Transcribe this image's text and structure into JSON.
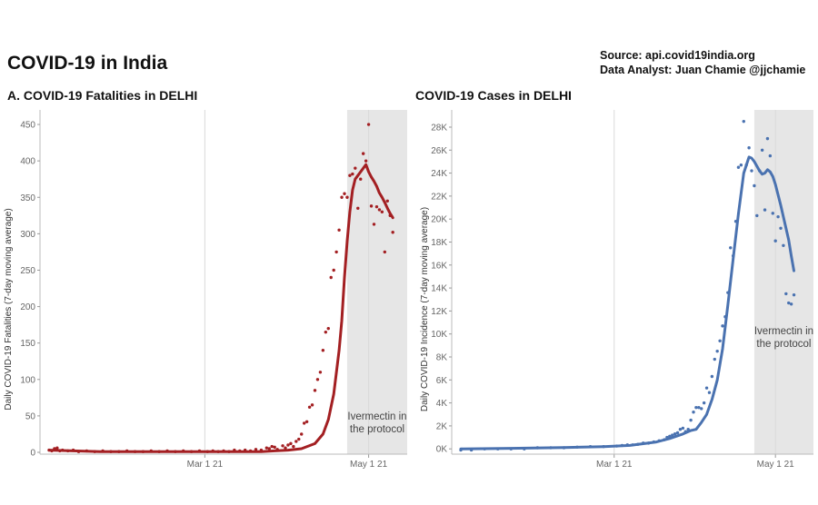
{
  "page": {
    "title": "COVID-19 in India",
    "source_line1": "Source: api.covid19india.org",
    "source_line2": "Data Analyst:  Juan Chamie @jjchamie"
  },
  "colors": {
    "fatalities": "#a31f22",
    "cases": "#4a72b0",
    "shade": "#e6e6e6"
  },
  "chart_data": [
    {
      "type": "line",
      "title": "A. COVID-19 Fatalities in DELHI",
      "ylabel": "Daily COVID-19 Fatalities (7-day moving average)",
      "ylim": [
        0,
        470
      ],
      "yticks": [
        0,
        50,
        100,
        150,
        200,
        250,
        300,
        350,
        400,
        450
      ],
      "ytick_labels": [
        "0",
        "50",
        "100",
        "150",
        "200",
        "250",
        "300",
        "350",
        "400",
        "450"
      ],
      "xticks": [
        {
          "label": "Mar 1 21",
          "day": 59
        },
        {
          "label": "May 1 21",
          "day": 120
        }
      ],
      "x_start_day": 1,
      "x_end_day": 133,
      "shaded_region": {
        "start_day": 112,
        "end_day": 133,
        "label_line1": "Ivermectin in",
        "label_line2": "the protocol"
      },
      "series": [
        {
          "kind": "line",
          "points": [
            [
              1,
              3
            ],
            [
              10,
              2
            ],
            [
              20,
              1
            ],
            [
              30,
              1
            ],
            [
              40,
              1
            ],
            [
              50,
              1
            ],
            [
              60,
              1
            ],
            [
              70,
              1
            ],
            [
              80,
              1
            ],
            [
              85,
              2
            ],
            [
              90,
              3
            ],
            [
              95,
              5
            ],
            [
              100,
              12
            ],
            [
              103,
              25
            ],
            [
              105,
              45
            ],
            [
              107,
              80
            ],
            [
              109,
              140
            ],
            [
              110,
              180
            ],
            [
              111,
              240
            ],
            [
              112,
              290
            ],
            [
              113,
              330
            ],
            [
              114,
              360
            ],
            [
              115,
              375
            ],
            [
              116,
              380
            ],
            [
              117,
              385
            ],
            [
              118,
              390
            ],
            [
              119,
              395
            ],
            [
              120,
              385
            ],
            [
              121,
              378
            ],
            [
              122,
              372
            ],
            [
              123,
              365
            ],
            [
              124,
              356
            ],
            [
              125,
              350
            ],
            [
              126,
              343
            ],
            [
              127,
              335
            ],
            [
              128,
              328
            ],
            [
              129,
              322
            ]
          ]
        },
        {
          "kind": "scatter",
          "points": [
            [
              1,
              3
            ],
            [
              2,
              2
            ],
            [
              3,
              5
            ],
            [
              4,
              6
            ],
            [
              5,
              2
            ],
            [
              6,
              3
            ],
            [
              8,
              2
            ],
            [
              10,
              3
            ],
            [
              12,
              1
            ],
            [
              15,
              2
            ],
            [
              18,
              1
            ],
            [
              21,
              2
            ],
            [
              24,
              1
            ],
            [
              27,
              1
            ],
            [
              30,
              2
            ],
            [
              33,
              1
            ],
            [
              36,
              1
            ],
            [
              39,
              2
            ],
            [
              42,
              1
            ],
            [
              45,
              2
            ],
            [
              48,
              1
            ],
            [
              51,
              2
            ],
            [
              54,
              1
            ],
            [
              57,
              2
            ],
            [
              60,
              1
            ],
            [
              62,
              2
            ],
            [
              64,
              1
            ],
            [
              66,
              2
            ],
            [
              68,
              1
            ],
            [
              70,
              3
            ],
            [
              72,
              2
            ],
            [
              74,
              3
            ],
            [
              76,
              2
            ],
            [
              78,
              4
            ],
            [
              80,
              3
            ],
            [
              82,
              6
            ],
            [
              83,
              5
            ],
            [
              84,
              8
            ],
            [
              85,
              7
            ],
            [
              86,
              4
            ],
            [
              88,
              9
            ],
            [
              89,
              6
            ],
            [
              90,
              10
            ],
            [
              91,
              12
            ],
            [
              92,
              8
            ],
            [
              93,
              15
            ],
            [
              94,
              18
            ],
            [
              95,
              25
            ],
            [
              96,
              40
            ],
            [
              97,
              42
            ],
            [
              98,
              62
            ],
            [
              99,
              65
            ],
            [
              100,
              85
            ],
            [
              101,
              100
            ],
            [
              102,
              110
            ],
            [
              103,
              140
            ],
            [
              104,
              165
            ],
            [
              105,
              170
            ],
            [
              106,
              240
            ],
            [
              107,
              250
            ],
            [
              108,
              275
            ],
            [
              109,
              305
            ],
            [
              110,
              350
            ],
            [
              111,
              355
            ],
            [
              112,
              350
            ],
            [
              113,
              380
            ],
            [
              114,
              382
            ],
            [
              115,
              390
            ],
            [
              116,
              335
            ],
            [
              117,
              375
            ],
            [
              118,
              410
            ],
            [
              119,
              400
            ],
            [
              120,
              450
            ],
            [
              121,
              338
            ],
            [
              122,
              313
            ],
            [
              123,
              337
            ],
            [
              124,
              333
            ],
            [
              125,
              330
            ],
            [
              126,
              275
            ],
            [
              127,
              345
            ],
            [
              128,
              325
            ],
            [
              129,
              302
            ]
          ]
        }
      ]
    },
    {
      "type": "line",
      "title": "COVID-19 Cases in DELHI",
      "ylabel": "Daily COVID-19 Incidence (7-day moving average)",
      "ylim": [
        -300,
        29500
      ],
      "yticks": [
        0,
        2000,
        4000,
        6000,
        8000,
        10000,
        12000,
        14000,
        16000,
        18000,
        20000,
        22000,
        24000,
        26000,
        28000
      ],
      "ytick_labels": [
        "0K",
        "2K",
        "4K",
        "6K",
        "8K",
        "10K",
        "12K",
        "14K",
        "16K",
        "18K",
        "20K",
        "22K",
        "24K",
        "26K",
        "28K"
      ],
      "xticks": [
        {
          "label": "Mar 1 21",
          "day": 59
        },
        {
          "label": "May 1 21",
          "day": 120
        }
      ],
      "x_start_day": 1,
      "x_end_day": 133,
      "shaded_region": {
        "start_day": 112,
        "end_day": 133,
        "label_line1": "Ivermectin in",
        "label_line2": "the protocol"
      },
      "series": [
        {
          "kind": "line",
          "points": [
            [
              1,
              0
            ],
            [
              20,
              50
            ],
            [
              40,
              120
            ],
            [
              55,
              200
            ],
            [
              65,
              300
            ],
            [
              75,
              600
            ],
            [
              80,
              900
            ],
            [
              85,
              1300
            ],
            [
              88,
              1600
            ],
            [
              90,
              1700
            ],
            [
              92,
              2300
            ],
            [
              94,
              3000
            ],
            [
              96,
              4300
            ],
            [
              98,
              6000
            ],
            [
              100,
              8700
            ],
            [
              102,
              12500
            ],
            [
              104,
              16500
            ],
            [
              106,
              20500
            ],
            [
              108,
              24000
            ],
            [
              110,
              25400
            ],
            [
              111,
              25300
            ],
            [
              112,
              25000
            ],
            [
              113,
              24600
            ],
            [
              114,
              24200
            ],
            [
              115,
              23900
            ],
            [
              116,
              24000
            ],
            [
              117,
              24300
            ],
            [
              118,
              24100
            ],
            [
              119,
              23700
            ],
            [
              120,
              23000
            ],
            [
              121,
              22100
            ],
            [
              122,
              21200
            ],
            [
              123,
              20200
            ],
            [
              124,
              19200
            ],
            [
              125,
              18200
            ],
            [
              126,
              16800
            ],
            [
              127,
              15500
            ]
          ]
        },
        {
          "kind": "scatter",
          "points": [
            [
              1,
              -100
            ],
            [
              5,
              -100
            ],
            [
              10,
              0
            ],
            [
              15,
              0
            ],
            [
              20,
              0
            ],
            [
              25,
              0
            ],
            [
              30,
              100
            ],
            [
              35,
              100
            ],
            [
              40,
              100
            ],
            [
              45,
              150
            ],
            [
              50,
              200
            ],
            [
              55,
              200
            ],
            [
              60,
              250
            ],
            [
              62,
              300
            ],
            [
              64,
              350
            ],
            [
              66,
              350
            ],
            [
              68,
              400
            ],
            [
              70,
              500
            ],
            [
              72,
              500
            ],
            [
              74,
              600
            ],
            [
              76,
              700
            ],
            [
              78,
              800
            ],
            [
              79,
              1000
            ],
            [
              80,
              1100
            ],
            [
              81,
              1200
            ],
            [
              82,
              1300
            ],
            [
              83,
              1400
            ],
            [
              84,
              1700
            ],
            [
              85,
              1800
            ],
            [
              86,
              1500
            ],
            [
              87,
              1700
            ],
            [
              88,
              2500
            ],
            [
              89,
              3200
            ],
            [
              90,
              3600
            ],
            [
              91,
              3600
            ],
            [
              92,
              3500
            ],
            [
              93,
              4000
            ],
            [
              94,
              5300
            ],
            [
              95,
              4900
            ],
            [
              96,
              6300
            ],
            [
              97,
              7800
            ],
            [
              98,
              8500
            ],
            [
              99,
              9400
            ],
            [
              100,
              10700
            ],
            [
              101,
              11500
            ],
            [
              102,
              13600
            ],
            [
              103,
              17500
            ],
            [
              104,
              16800
            ],
            [
              105,
              19800
            ],
            [
              106,
              24500
            ],
            [
              107,
              24700
            ],
            [
              108,
              28500
            ],
            [
              109,
              24700
            ],
            [
              110,
              26200
            ],
            [
              111,
              24200
            ],
            [
              112,
              22900
            ],
            [
              113,
              20300
            ],
            [
              114,
              24200
            ],
            [
              115,
              26000
            ],
            [
              116,
              20800
            ],
            [
              117,
              27000
            ],
            [
              118,
              25500
            ],
            [
              119,
              20500
            ],
            [
              120,
              18100
            ],
            [
              121,
              20200
            ],
            [
              122,
              19200
            ],
            [
              123,
              17700
            ],
            [
              124,
              13500
            ],
            [
              125,
              12700
            ],
            [
              126,
              12600
            ],
            [
              127,
              13400
            ]
          ]
        }
      ]
    }
  ]
}
